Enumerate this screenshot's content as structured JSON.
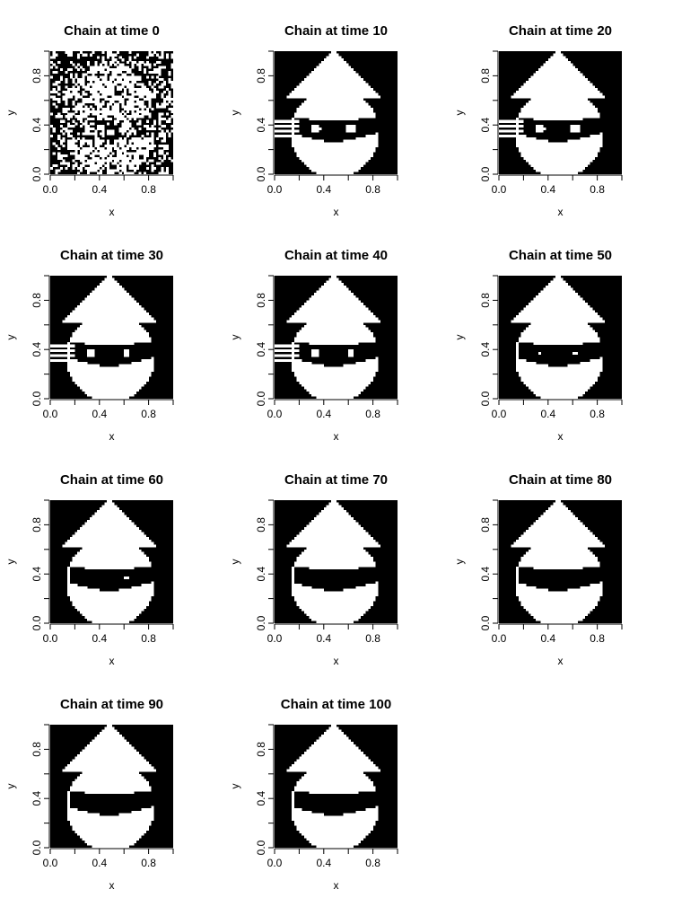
{
  "chart_data": {
    "type": "heatmap",
    "colors": {
      "background": "#000000",
      "foreground": "#ffffff",
      "axis": "#000000"
    },
    "xlim": [
      0,
      1
    ],
    "ylim": [
      0,
      1
    ],
    "x_ticks": [
      0.0,
      0.2,
      0.4,
      0.6,
      0.8,
      1.0
    ],
    "x_tick_labels": [
      "0.0",
      "",
      "0.4",
      "",
      "0.8",
      ""
    ],
    "y_ticks": [
      0.0,
      0.2,
      0.4,
      0.6,
      0.8,
      1.0
    ],
    "y_tick_labels": [
      "0.0",
      "",
      "0.4",
      "",
      "0.8",
      ""
    ],
    "xlabel": "x",
    "ylabel": "y",
    "panels": [
      {
        "title": "Chain at time  0",
        "time": 0,
        "noise": 0.28,
        "eye_holes": true,
        "hole_size": 0.06,
        "mask_gaps": false,
        "left_hole": true,
        "right_hole": true
      },
      {
        "title": "Chain at time  10",
        "time": 10,
        "noise": 0.0,
        "eye_holes": true,
        "hole_size": 0.04,
        "mask_gaps": true,
        "left_hole": true,
        "right_hole": true
      },
      {
        "title": "Chain at time  20",
        "time": 20,
        "noise": 0.0,
        "eye_holes": true,
        "hole_size": 0.04,
        "mask_gaps": true,
        "left_hole": true,
        "right_hole": true
      },
      {
        "title": "Chain at time  30",
        "time": 30,
        "noise": 0.0,
        "eye_holes": true,
        "hole_size": 0.03,
        "mask_gaps": true,
        "left_hole": true,
        "right_hole": true
      },
      {
        "title": "Chain at time  40",
        "time": 40,
        "noise": 0.0,
        "eye_holes": true,
        "hole_size": 0.03,
        "mask_gaps": true,
        "left_hole": true,
        "right_hole": true
      },
      {
        "title": "Chain at time  50",
        "time": 50,
        "noise": 0.0,
        "eye_holes": true,
        "hole_size": 0.015,
        "mask_gaps": false,
        "left_hole": true,
        "right_hole": true
      },
      {
        "title": "Chain at time  60",
        "time": 60,
        "noise": 0.0,
        "eye_holes": true,
        "hole_size": 0.02,
        "mask_gaps": false,
        "left_hole": false,
        "right_hole": true
      },
      {
        "title": "Chain at time  70",
        "time": 70,
        "noise": 0.0,
        "eye_holes": false,
        "hole_size": 0.0,
        "mask_gaps": false,
        "left_hole": false,
        "right_hole": false
      },
      {
        "title": "Chain at time  80",
        "time": 80,
        "noise": 0.0,
        "eye_holes": false,
        "hole_size": 0.0,
        "mask_gaps": false,
        "left_hole": false,
        "right_hole": false
      },
      {
        "title": "Chain at time  90",
        "time": 90,
        "noise": 0.0,
        "eye_holes": false,
        "hole_size": 0.0,
        "mask_gaps": false,
        "left_hole": false,
        "right_hole": false
      },
      {
        "title": "Chain at time  100",
        "time": 100,
        "noise": 0.0,
        "eye_holes": false,
        "hole_size": 0.0,
        "mask_gaps": false,
        "left_hole": false,
        "right_hole": false
      }
    ]
  }
}
